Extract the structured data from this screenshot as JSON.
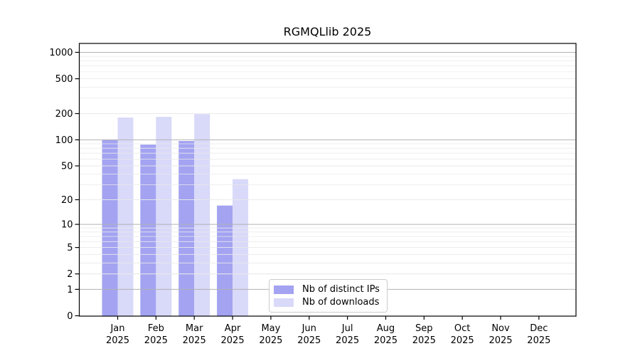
{
  "chart_data": {
    "type": "bar",
    "title": "RGMQLlib 2025",
    "categories": [
      "Jan 2025",
      "Feb 2025",
      "Mar 2025",
      "Apr 2025",
      "May 2025",
      "Jun 2025",
      "Jul 2025",
      "Aug 2025",
      "Sep 2025",
      "Oct 2025",
      "Nov 2025",
      "Dec 2025"
    ],
    "series": [
      {
        "name": "Nb of distinct IPs",
        "color": "#a3a3f2",
        "values": [
          100,
          88,
          97,
          17,
          0,
          0,
          0,
          0,
          0,
          0,
          0,
          0
        ]
      },
      {
        "name": "Nb of downloads",
        "color": "#d9d9f9",
        "values": [
          180,
          183,
          197,
          35,
          0,
          0,
          0,
          0,
          0,
          0,
          0,
          0
        ]
      }
    ],
    "xlabel": "",
    "ylabel": "",
    "yticks": [
      0,
      1,
      2,
      5,
      10,
      20,
      50,
      100,
      200,
      500,
      1000
    ],
    "y_scale": "log10(1+x)",
    "ylim": [
      0,
      1250
    ],
    "grid": true,
    "gridline_major_values": [
      1,
      10,
      100,
      1000
    ],
    "legend_position": "lower center",
    "colors": {
      "major_grid": "#b2b2b2",
      "minor_grid": "#e9e9e9",
      "axis": "#000000"
    }
  }
}
